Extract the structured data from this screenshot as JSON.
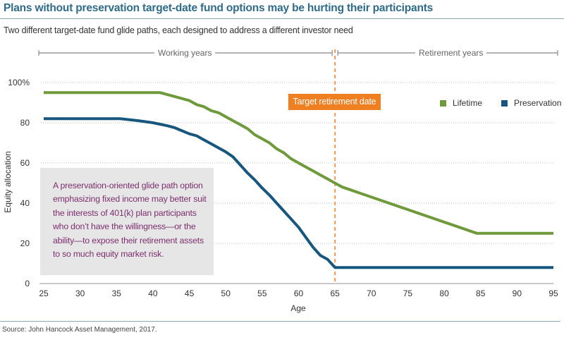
{
  "title": "Plans without preservation target-date fund options may be hurting their participants",
  "subtitle": "Two different target-date fund glide paths, each designed to address a different investor need",
  "source": "Source: John Hancock Asset Management, 2017.",
  "colors": {
    "title": "#2f6b8a",
    "lifetime": "#6f9a3b",
    "preservation": "#17577f",
    "target_marker": "#f07f22",
    "callout_text": "#7b2e6e",
    "callout_bg": "#e6e6e6"
  },
  "periods": {
    "working": "Working years",
    "retirement": "Retirement years"
  },
  "target_badge": "Target retirement date",
  "callout_lines": [
    "A preservation-oriented glide path option",
    "emphasizing fixed income may better suit",
    "the interests of 401(k) plan participants",
    "who don’t have the willingness—or the",
    "ability—to expose their retirement assets",
    "to so much equity market risk."
  ],
  "chart_data": {
    "type": "line",
    "title": "Plans without preservation target-date fund options may be hurting their participants",
    "xlabel": "Age",
    "ylabel": "Equity allocation",
    "xlim": [
      25,
      95
    ],
    "ylim": [
      0,
      100
    ],
    "x_ticks": [
      "25",
      "30",
      "35",
      "40",
      "45",
      "50",
      "55",
      "60",
      "65",
      "70",
      "75",
      "80",
      "85",
      "90",
      "95"
    ],
    "y_ticks": [
      "0",
      "20",
      "40",
      "60",
      "80",
      "100%"
    ],
    "y_tick_values": [
      0,
      20,
      40,
      60,
      80,
      100
    ],
    "grid": "horizontal-dotted",
    "legend_position": "top-right",
    "target_retirement_age": 65,
    "series": [
      {
        "name": "Lifetime",
        "color": "#6f9a3b",
        "points": [
          [
            25,
            95
          ],
          [
            41,
            95
          ],
          [
            43,
            93
          ],
          [
            45,
            91
          ],
          [
            46,
            89
          ],
          [
            47,
            88
          ],
          [
            48,
            86
          ],
          [
            49,
            85
          ],
          [
            50,
            83
          ],
          [
            51,
            81
          ],
          [
            52,
            79
          ],
          [
            53,
            77
          ],
          [
            54,
            74
          ],
          [
            55,
            72
          ],
          [
            56,
            70
          ],
          [
            57,
            67
          ],
          [
            58,
            65
          ],
          [
            59,
            62
          ],
          [
            60,
            60
          ],
          [
            61,
            58
          ],
          [
            62,
            56
          ],
          [
            63,
            54
          ],
          [
            64,
            52
          ],
          [
            65,
            50
          ],
          [
            66,
            48
          ],
          [
            84.5,
            25
          ],
          [
            95,
            25
          ]
        ]
      },
      {
        "name": "Preservation",
        "color": "#17577f",
        "points": [
          [
            25,
            82
          ],
          [
            35.5,
            82
          ],
          [
            38,
            81
          ],
          [
            40,
            80
          ],
          [
            42,
            78.5
          ],
          [
            43,
            77.5
          ],
          [
            44,
            76
          ],
          [
            45,
            74.5
          ],
          [
            46,
            73.5
          ],
          [
            47,
            71.5
          ],
          [
            48,
            69.5
          ],
          [
            49,
            67.5
          ],
          [
            50,
            65.5
          ],
          [
            51,
            63
          ],
          [
            52,
            59
          ],
          [
            53,
            55
          ],
          [
            54,
            51.5
          ],
          [
            55,
            47.5
          ],
          [
            56,
            44
          ],
          [
            57,
            40
          ],
          [
            58,
            36
          ],
          [
            59,
            32
          ],
          [
            60,
            28
          ],
          [
            61,
            23
          ],
          [
            62,
            18
          ],
          [
            63,
            14
          ],
          [
            64,
            12
          ],
          [
            65,
            8
          ],
          [
            95,
            8
          ]
        ]
      }
    ]
  }
}
